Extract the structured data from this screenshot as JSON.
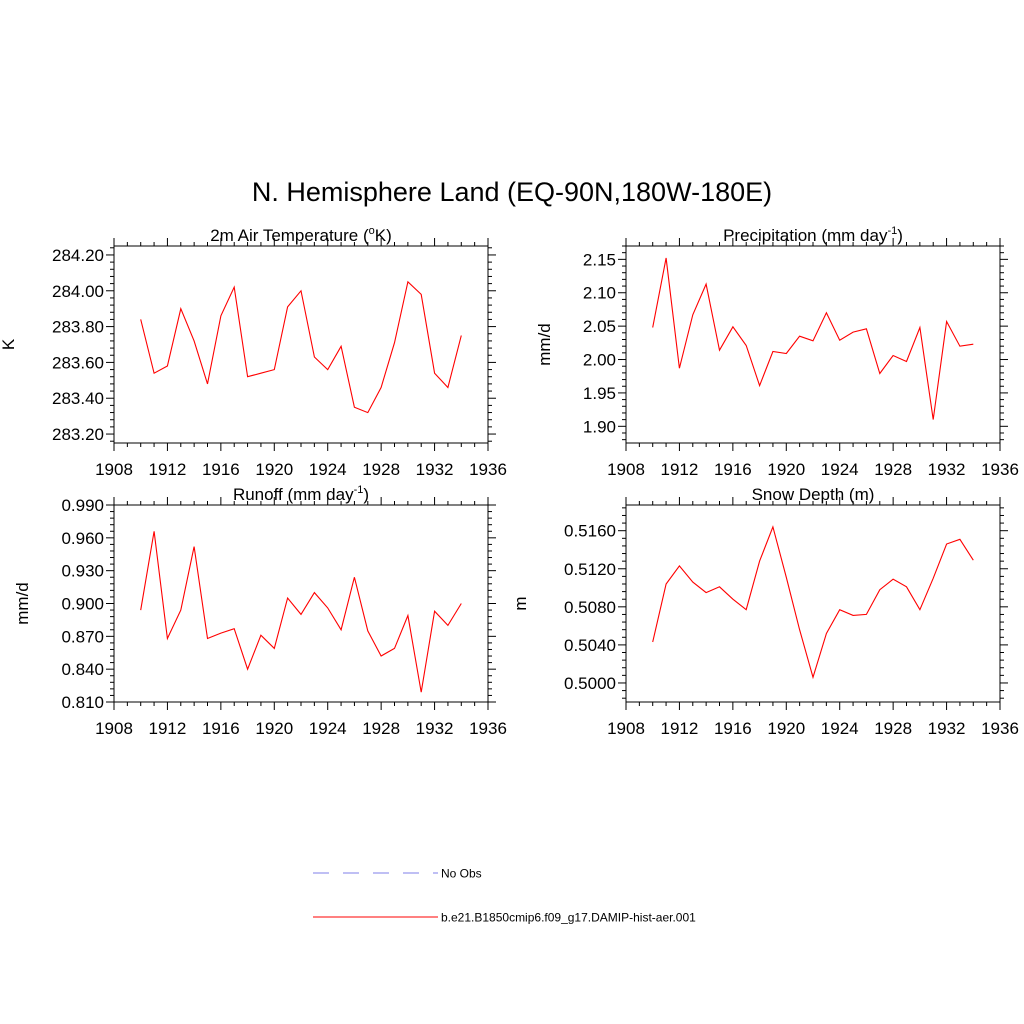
{
  "figure": {
    "title": "N. Hemisphere Land (EQ-90N,180W-180E)"
  },
  "legend": {
    "placement": "bottom-center",
    "entries": [
      {
        "label": "No Obs",
        "color": "#9999ee",
        "style": "dashed"
      },
      {
        "label": "b.e21.B1850cmip6.f09_g17.DAMIP-hist-aer.001",
        "color": "#ff0000",
        "style": "solid"
      }
    ]
  },
  "chart_data": [
    {
      "type": "line",
      "id": "temp",
      "title": "2m Air Temperature (oK)",
      "title_parts": {
        "pre": "2m Air Temperature (",
        "sup": "o",
        "post": "K)"
      },
      "xlabel": "",
      "ylabel": "K",
      "xlim": [
        1908,
        1936
      ],
      "ylim": [
        283.15,
        284.25
      ],
      "xticks": [
        1908,
        1912,
        1916,
        1920,
        1924,
        1928,
        1932,
        1936
      ],
      "yticks": [
        "283.20",
        "283.40",
        "283.60",
        "283.80",
        "284.00",
        "284.20"
      ],
      "series": [
        {
          "color": "#ff0000",
          "x": [
            1910,
            1911,
            1912,
            1913,
            1914,
            1915,
            1916,
            1917,
            1918,
            1919,
            1920,
            1921,
            1922,
            1923,
            1924,
            1925,
            1926,
            1927,
            1928,
            1929,
            1930,
            1931,
            1932,
            1933,
            1934
          ],
          "values": [
            283.84,
            283.54,
            283.58,
            283.9,
            283.72,
            283.48,
            283.86,
            284.02,
            283.52,
            283.54,
            283.56,
            283.91,
            284.0,
            283.63,
            283.56,
            283.69,
            283.35,
            283.32,
            283.46,
            283.71,
            284.05,
            283.98,
            283.54,
            283.46,
            283.75
          ]
        }
      ],
      "grid": false
    },
    {
      "type": "line",
      "id": "precip",
      "title": "Precipitation (mm day-1)",
      "title_parts": {
        "pre": "Precipitation (mm day",
        "sup": "-1",
        "post": ")"
      },
      "xlabel": "",
      "ylabel": "mm/d",
      "xlim": [
        1908,
        1936
      ],
      "ylim": [
        1.875,
        2.17
      ],
      "xticks": [
        1908,
        1912,
        1916,
        1920,
        1924,
        1928,
        1932,
        1936
      ],
      "yticks": [
        "1.90",
        "1.95",
        "2.00",
        "2.05",
        "2.10",
        "2.15"
      ],
      "series": [
        {
          "color": "#ff0000",
          "x": [
            1910,
            1911,
            1912,
            1913,
            1914,
            1915,
            1916,
            1917,
            1918,
            1919,
            1920,
            1921,
            1922,
            1923,
            1924,
            1925,
            1926,
            1927,
            1928,
            1929,
            1930,
            1931,
            1932,
            1933,
            1934
          ],
          "values": [
            2.048,
            2.152,
            1.987,
            2.067,
            2.113,
            2.014,
            2.049,
            2.021,
            1.961,
            2.012,
            2.009,
            2.035,
            2.028,
            2.07,
            2.029,
            2.041,
            2.046,
            1.979,
            2.006,
            1.997,
            2.048,
            1.91,
            2.057,
            2.02,
            2.023
          ]
        }
      ],
      "grid": false
    },
    {
      "type": "line",
      "id": "runoff",
      "title": "Runoff (mm day-1)",
      "title_parts": {
        "pre": "Runoff (mm day",
        "sup": "-1",
        "post": ")"
      },
      "xlabel": "",
      "ylabel": "mm/d",
      "xlim": [
        1908,
        1936
      ],
      "ylim": [
        0.81,
        0.99
      ],
      "xticks": [
        1908,
        1912,
        1916,
        1920,
        1924,
        1928,
        1932,
        1936
      ],
      "yticks": [
        "0.810",
        "0.840",
        "0.870",
        "0.900",
        "0.930",
        "0.960",
        "0.990"
      ],
      "series": [
        {
          "color": "#ff0000",
          "x": [
            1910,
            1911,
            1912,
            1913,
            1914,
            1915,
            1916,
            1917,
            1918,
            1919,
            1920,
            1921,
            1922,
            1923,
            1924,
            1925,
            1926,
            1927,
            1928,
            1929,
            1930,
            1931,
            1932,
            1933,
            1934
          ],
          "values": [
            0.894,
            0.966,
            0.868,
            0.894,
            0.952,
            0.868,
            0.873,
            0.877,
            0.84,
            0.871,
            0.859,
            0.905,
            0.89,
            0.91,
            0.896,
            0.876,
            0.924,
            0.875,
            0.852,
            0.859,
            0.889,
            0.819,
            0.893,
            0.88,
            0.9
          ]
        }
      ],
      "grid": false
    },
    {
      "type": "line",
      "id": "snow",
      "title": "Snow Depth (m)",
      "title_parts": {
        "pre": "Snow Depth (m)",
        "sup": "",
        "post": ""
      },
      "xlabel": "",
      "ylabel": "m",
      "xlim": [
        1908,
        1936
      ],
      "ylim": [
        0.498,
        0.5187
      ],
      "xticks": [
        1908,
        1912,
        1916,
        1920,
        1924,
        1928,
        1932,
        1936
      ],
      "yticks": [
        "0.5000",
        "0.5040",
        "0.5080",
        "0.5120",
        "0.5160"
      ],
      "series": [
        {
          "color": "#ff0000",
          "x": [
            1910,
            1911,
            1912,
            1913,
            1914,
            1915,
            1916,
            1917,
            1918,
            1919,
            1920,
            1921,
            1922,
            1923,
            1924,
            1925,
            1926,
            1927,
            1928,
            1929,
            1930,
            1931,
            1932,
            1933,
            1934
          ],
          "values": [
            0.5043,
            0.5104,
            0.5123,
            0.5106,
            0.5095,
            0.5101,
            0.5088,
            0.5077,
            0.5128,
            0.5164,
            0.5111,
            0.5056,
            0.5006,
            0.5052,
            0.5077,
            0.5071,
            0.5072,
            0.5098,
            0.5109,
            0.5101,
            0.5077,
            0.511,
            0.5146,
            0.5151,
            0.5129
          ]
        }
      ],
      "grid": false
    }
  ]
}
